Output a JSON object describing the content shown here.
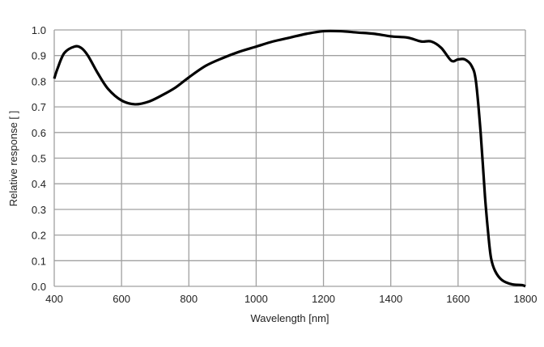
{
  "chart_data": {
    "type": "line",
    "title": "",
    "xlabel": "Wavelength [nm]",
    "ylabel": "Relative response [ ]",
    "xlim": [
      400,
      1800
    ],
    "ylim": [
      0.0,
      1.0
    ],
    "xticks": [
      "400",
      "600",
      "800",
      "1000",
      "1200",
      "1400",
      "1600",
      "1800"
    ],
    "yticks": [
      "0.0",
      "0.1",
      "0.2",
      "0.3",
      "0.4",
      "0.5",
      "0.6",
      "0.7",
      "0.8",
      "0.9",
      "1.0"
    ],
    "grid": true,
    "legend": "none",
    "line_color": "#000000",
    "grid_color": "#a0a0a0",
    "series": [
      {
        "x": [
          400,
          410,
          430,
          460,
          480,
          500,
          530,
          560,
          600,
          640,
          680,
          720,
          760,
          800,
          850,
          900,
          950,
          1000,
          1050,
          1100,
          1150,
          1200,
          1250,
          1300,
          1350,
          1400,
          1450,
          1490,
          1520,
          1550,
          1580,
          1600,
          1620,
          1640,
          1653,
          1667,
          1680,
          1690,
          1698,
          1710,
          1730,
          1760,
          1790,
          1800
        ],
        "y": [
          0.81,
          0.85,
          0.91,
          0.935,
          0.93,
          0.9,
          0.83,
          0.77,
          0.725,
          0.71,
          0.72,
          0.745,
          0.775,
          0.815,
          0.86,
          0.89,
          0.915,
          0.935,
          0.955,
          0.97,
          0.985,
          0.995,
          0.995,
          0.99,
          0.985,
          0.975,
          0.97,
          0.955,
          0.955,
          0.93,
          0.88,
          0.885,
          0.885,
          0.86,
          0.8,
          0.6,
          0.35,
          0.2,
          0.11,
          0.06,
          0.025,
          0.008,
          0.005,
          0.0
        ]
      }
    ]
  }
}
